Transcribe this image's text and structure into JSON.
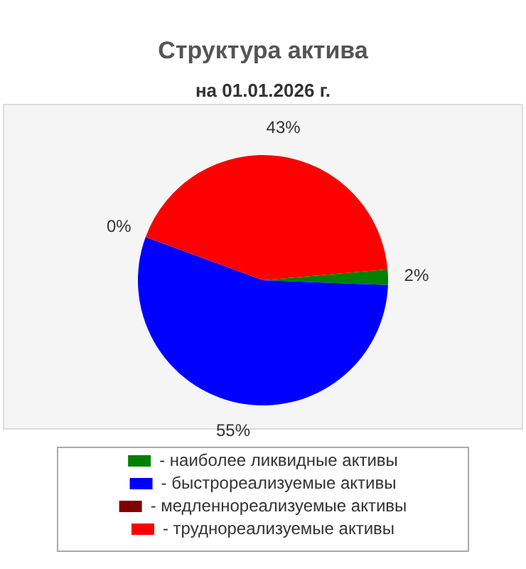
{
  "chart_data": {
    "type": "pie",
    "title": "Структура актива",
    "subtitle": "на 01.01.2026 г.",
    "categories": [
      "- наиболее ликвидные активы",
      "- быстрореализуемые активы",
      "- медленнореализуемые активы",
      "- труднореализуемые активы"
    ],
    "values": [
      2,
      55,
      0,
      43
    ],
    "colors": [
      "#008000",
      "#0000ff",
      "#800000",
      "#ff0000"
    ],
    "value_labels": [
      "2%",
      "55%",
      "0%",
      "43%"
    ],
    "legend": "bottom"
  }
}
